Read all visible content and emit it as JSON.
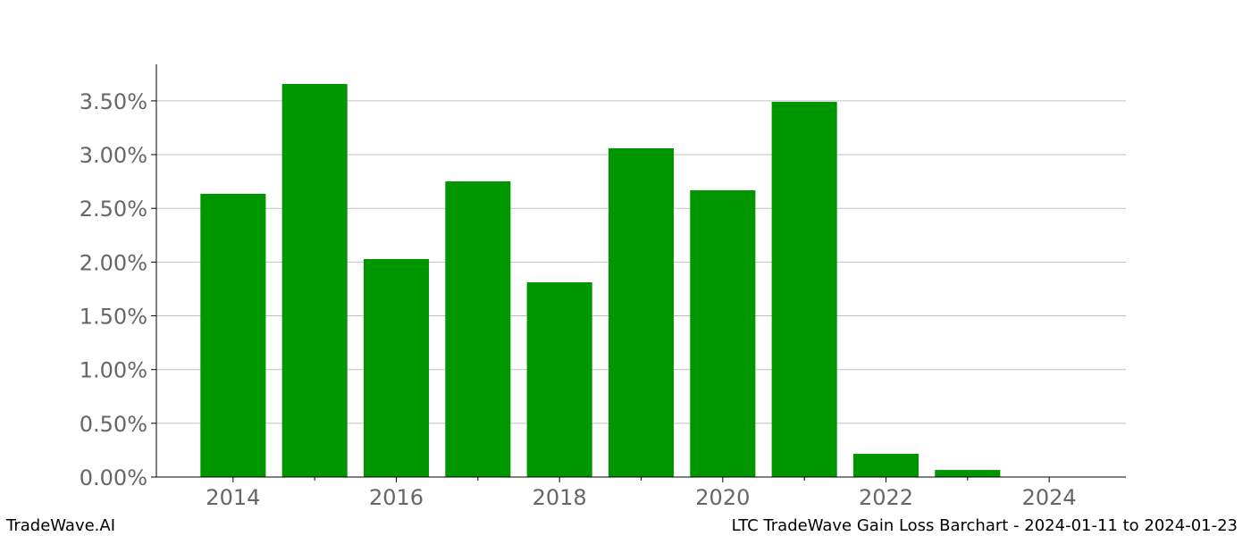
{
  "chart_data": {
    "type": "bar",
    "x": [
      2014,
      2015,
      2016,
      2017,
      2018,
      2019,
      2020,
      2021,
      2022,
      2023,
      2024
    ],
    "values": [
      2.635,
      3.657,
      2.028,
      2.751,
      1.812,
      3.059,
      2.668,
      3.491,
      0.216,
      0.066,
      0
    ],
    "bar_width": 0.8,
    "color": "#009600",
    "xlim": [
      2013.06,
      2024.94
    ],
    "xticks": [
      2014,
      2016,
      2018,
      2020,
      2022,
      2024
    ],
    "xminorticks": [
      2015,
      2017,
      2019,
      2021,
      2023
    ],
    "ylim": [
      0,
      3.84
    ],
    "yticks": [
      {
        "value": 0,
        "label": "0.00%"
      },
      {
        "value": 0.5,
        "label": "0.50%"
      },
      {
        "value": 1,
        "label": "1.00%"
      },
      {
        "value": 1.5,
        "label": "1.50%"
      },
      {
        "value": 2,
        "label": "2.00%"
      },
      {
        "value": 2.5,
        "label": "2.50%"
      },
      {
        "value": 3,
        "label": "3.00%"
      },
      {
        "value": 3.5,
        "label": "3.50%"
      }
    ],
    "grid": true,
    "footer_left": "TradeWave.AI",
    "footer_right": "LTC TradeWave Gain Loss Barchart - 2024-01-11 to 2024-01-23"
  }
}
